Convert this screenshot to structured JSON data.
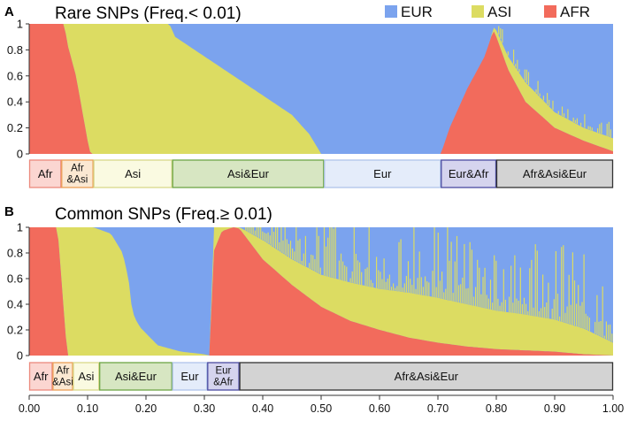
{
  "legend": [
    {
      "name": "EUR",
      "color": "#7BA3EE"
    },
    {
      "name": "ASI",
      "color": "#DCDC62"
    },
    {
      "name": "AFR",
      "color": "#F26B5C"
    }
  ],
  "x_ticks": [
    "0.00",
    "0.10",
    "0.20",
    "0.30",
    "0.40",
    "0.50",
    "0.60",
    "0.70",
    "0.80",
    "0.90",
    "1.00"
  ],
  "chart_data": [
    {
      "type": "area",
      "panel": "A",
      "title": "Rare SNPs (Freq.< 0.01)",
      "xlim": [
        0,
        1
      ],
      "ylim": [
        0,
        1
      ],
      "y_ticks": [
        "0",
        "0.2",
        "0.4",
        "0.6",
        "0.8",
        "1"
      ],
      "stack_order": [
        "AFR",
        "ASI",
        "EUR"
      ],
      "series": [
        {
          "name": "AFR",
          "points": [
            [
              0,
              1
            ],
            [
              0.06,
              1
            ],
            [
              0.065,
              0.85
            ],
            [
              0.08,
              0.6
            ],
            [
              0.09,
              0.35
            ],
            [
              0.1,
              0.1
            ],
            [
              0.105,
              0
            ],
            [
              0.705,
              0
            ],
            [
              0.72,
              0.2
            ],
            [
              0.75,
              0.5
            ],
            [
              0.78,
              0.75
            ],
            [
              0.795,
              0.95
            ],
            [
              0.8,
              0.9
            ],
            [
              0.82,
              0.65
            ],
            [
              0.85,
              0.4
            ],
            [
              0.9,
              0.2
            ],
            [
              0.95,
              0.1
            ],
            [
              1,
              0.02
            ]
          ]
        },
        {
          "name": "ASI",
          "points": [
            [
              0,
              0
            ],
            [
              0.06,
              0
            ],
            [
              0.065,
              0.15
            ],
            [
              0.08,
              0.4
            ],
            [
              0.09,
              0.65
            ],
            [
              0.1,
              0.9
            ],
            [
              0.105,
              1
            ],
            [
              0.24,
              1
            ],
            [
              0.25,
              0.9
            ],
            [
              0.3,
              0.75
            ],
            [
              0.35,
              0.6
            ],
            [
              0.4,
              0.45
            ],
            [
              0.45,
              0.3
            ],
            [
              0.48,
              0.15
            ],
            [
              0.5,
              0
            ],
            [
              0.705,
              0
            ],
            [
              0.79,
              0
            ],
            [
              0.8,
              0.05
            ],
            [
              0.82,
              0.1
            ],
            [
              0.85,
              0.15
            ],
            [
              0.9,
              0.12
            ],
            [
              0.95,
              0.1
            ],
            [
              1,
              0.1
            ]
          ]
        }
      ],
      "categories": [
        {
          "label": "Afr",
          "start": 0.0,
          "end": 0.055,
          "fill": "#FBD6D1",
          "stroke": "#EC8A7E"
        },
        {
          "label": "Afr &Asi",
          "start": 0.055,
          "end": 0.11,
          "fill": "#FBE8D2",
          "stroke": "#EC9E56"
        },
        {
          "label": "Asi",
          "start": 0.11,
          "end": 0.245,
          "fill": "#FAFAE1",
          "stroke": "#D8D88A"
        },
        {
          "label": "Asi&Eur",
          "start": 0.245,
          "end": 0.505,
          "fill": "#D7E6C2",
          "stroke": "#6EA646"
        },
        {
          "label": "Eur",
          "start": 0.505,
          "end": 0.705,
          "fill": "#E4ECFA",
          "stroke": "#AFC4EA"
        },
        {
          "label": "Eur&Afr",
          "start": 0.705,
          "end": 0.8,
          "fill": "#D5D4EE",
          "stroke": "#4B4BA0"
        },
        {
          "label": "Afr&Asi&Eur",
          "start": 0.8,
          "end": 1.0,
          "fill": "#D3D3D3",
          "stroke": "#333333"
        }
      ]
    },
    {
      "type": "area",
      "panel": "B",
      "title": "Common SNPs (Freq.≥ 0.01)",
      "xlim": [
        0,
        1
      ],
      "ylim": [
        0,
        1
      ],
      "y_ticks": [
        "0",
        "0.2",
        "0.4",
        "0.6",
        "0.8",
        "1"
      ],
      "stack_order": [
        "AFR",
        "ASI",
        "EUR"
      ],
      "series": [
        {
          "name": "AFR",
          "points": [
            [
              0,
              1
            ],
            [
              0.048,
              1
            ],
            [
              0.05,
              0.9
            ],
            [
              0.06,
              0.3
            ],
            [
              0.065,
              0
            ],
            [
              0.31,
              0
            ],
            [
              0.315,
              0.8
            ],
            [
              0.33,
              0.97
            ],
            [
              0.35,
              1
            ],
            [
              0.36,
              0.99
            ],
            [
              0.4,
              0.75
            ],
            [
              0.45,
              0.55
            ],
            [
              0.5,
              0.38
            ],
            [
              0.55,
              0.27
            ],
            [
              0.6,
              0.2
            ],
            [
              0.65,
              0.14
            ],
            [
              0.7,
              0.1
            ],
            [
              0.75,
              0.07
            ],
            [
              0.8,
              0.05
            ],
            [
              0.85,
              0.04
            ],
            [
              0.9,
              0.03
            ],
            [
              0.95,
              0.01
            ],
            [
              1,
              0
            ]
          ]
        },
        {
          "name": "ASI",
          "points": [
            [
              0,
              0
            ],
            [
              0.048,
              0
            ],
            [
              0.05,
              0.1
            ],
            [
              0.06,
              0.7
            ],
            [
              0.065,
              1
            ],
            [
              0.11,
              1
            ],
            [
              0.14,
              0.95
            ],
            [
              0.16,
              0.8
            ],
            [
              0.17,
              0.6
            ],
            [
              0.175,
              0.4
            ],
            [
              0.18,
              0.3
            ],
            [
              0.19,
              0.22
            ],
            [
              0.22,
              0.08
            ],
            [
              0.26,
              0.03
            ],
            [
              0.3,
              0.01
            ],
            [
              0.31,
              0
            ],
            [
              0.315,
              0.2
            ],
            [
              0.33,
              0.03
            ],
            [
              0.35,
              0
            ],
            [
              0.36,
              0.01
            ],
            [
              0.4,
              0.15
            ],
            [
              0.45,
              0.2
            ],
            [
              0.5,
              0.25
            ],
            [
              0.55,
              0.3
            ],
            [
              0.6,
              0.32
            ],
            [
              0.65,
              0.35
            ],
            [
              0.7,
              0.35
            ],
            [
              0.75,
              0.33
            ],
            [
              0.8,
              0.3
            ],
            [
              0.85,
              0.28
            ],
            [
              0.9,
              0.25
            ],
            [
              0.95,
              0.2
            ],
            [
              1,
              0.1
            ]
          ]
        }
      ],
      "categories": [
        {
          "label": "Afr",
          "start": 0.0,
          "end": 0.04,
          "fill": "#FBD6D1",
          "stroke": "#EC8A7E"
        },
        {
          "label": "Afr &Asi",
          "start": 0.04,
          "end": 0.075,
          "fill": "#FBE8D2",
          "stroke": "#EC9E56"
        },
        {
          "label": "Asi",
          "start": 0.075,
          "end": 0.12,
          "fill": "#FAFAE1",
          "stroke": "#D8D88A"
        },
        {
          "label": "Asi&Eur",
          "start": 0.12,
          "end": 0.245,
          "fill": "#D7E6C2",
          "stroke": "#6EA646"
        },
        {
          "label": "Eur",
          "start": 0.245,
          "end": 0.305,
          "fill": "#E4ECFA",
          "stroke": "#AFC4EA"
        },
        {
          "label": "Eur &Afr",
          "start": 0.305,
          "end": 0.36,
          "fill": "#D5D4EE",
          "stroke": "#4B4BA0"
        },
        {
          "label": "Afr&Asi&Eur",
          "start": 0.36,
          "end": 1.0,
          "fill": "#D3D3D3",
          "stroke": "#333333"
        }
      ]
    }
  ]
}
